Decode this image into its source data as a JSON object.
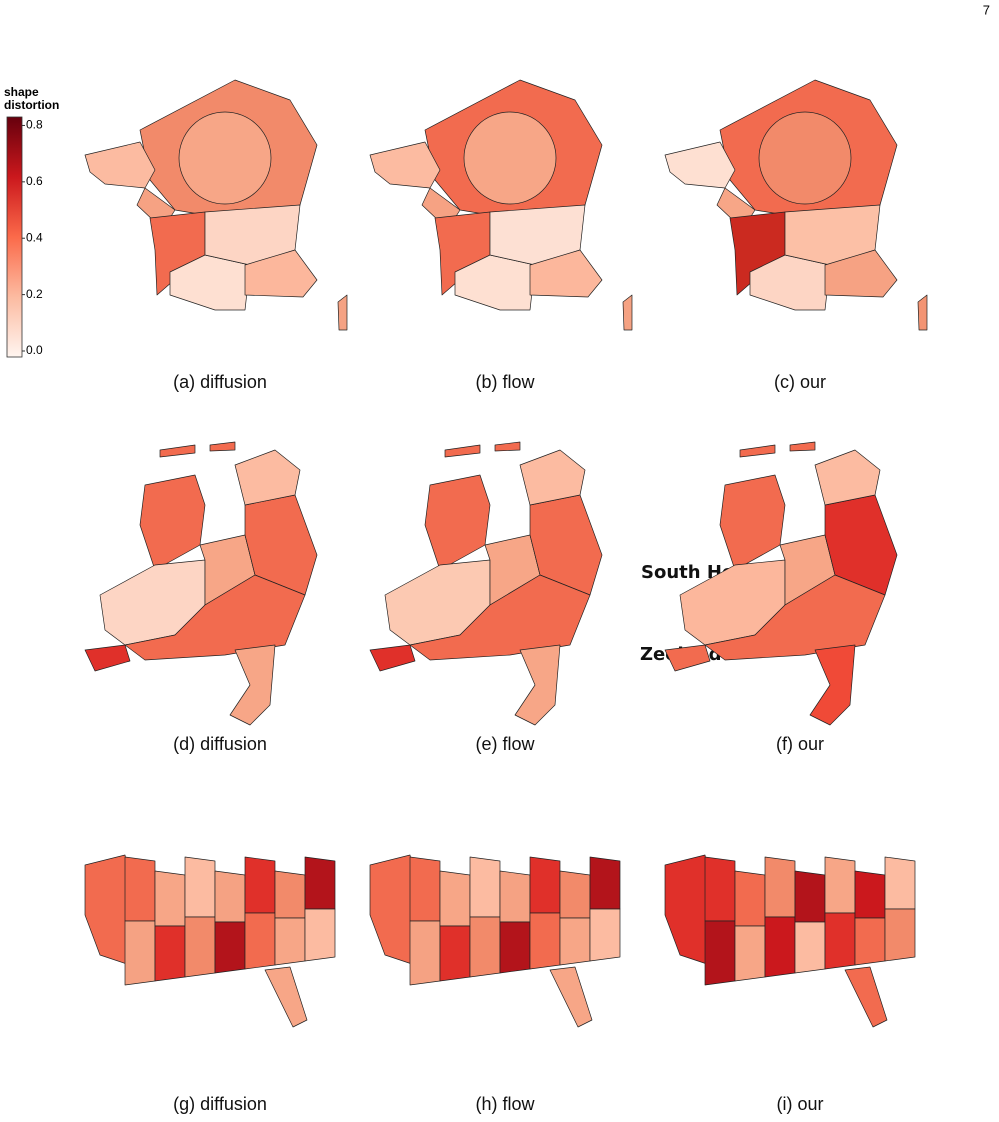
{
  "page_number": "7",
  "colorbar": {
    "label": "shape distortion",
    "lim": [
      0,
      0.83
    ],
    "ticks": [
      {
        "value": 0,
        "label": "0.0"
      },
      0.2,
      0.4,
      0.6,
      0.8
    ]
  },
  "panels": [
    {
      "caption": "(a) diffusion"
    },
    {
      "caption": "(b) flow"
    },
    {
      "caption": "(c) our"
    },
    {
      "caption": "(d) diffusion"
    },
    {
      "caption": "(e) flow"
    },
    {
      "caption": "(f) our"
    },
    {
      "caption": "(g) diffusion"
    },
    {
      "caption": "(h) flow"
    },
    {
      "caption": "(i) our"
    }
  ],
  "annotations": [
    "South Holland",
    "Zeeland"
  ]
}
